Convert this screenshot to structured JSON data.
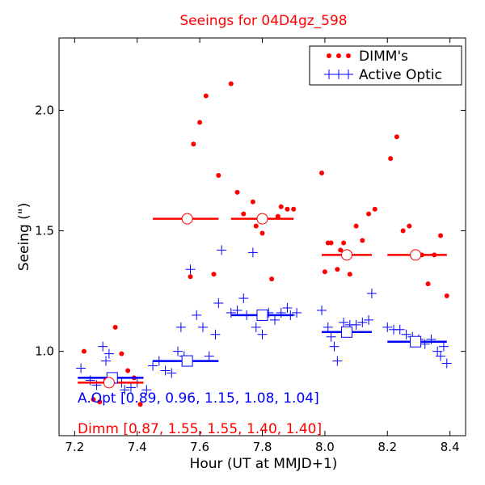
{
  "chart_data": {
    "type": "scatter",
    "title": "Seeings for 04D4gz_598",
    "xlabel": "Hour (UT at MMJD+1)",
    "ylabel": "Seeing (\")",
    "xlim": [
      7.15,
      8.45
    ],
    "ylim": [
      0.65,
      2.3
    ],
    "x_ticks": [
      7.2,
      7.4,
      7.6,
      7.8,
      8.0,
      8.2,
      8.4
    ],
    "x_tick_labels": [
      "7.2",
      "7.4",
      "7.6",
      "7.8",
      "8.0",
      "8.2",
      "8.4"
    ],
    "y_ticks": [
      1.0,
      1.5,
      2.0
    ],
    "y_tick_labels": [
      "1.0",
      "1.5",
      "2.0"
    ],
    "grid": false,
    "legend_position": "top-right",
    "series": [
      {
        "name": "DIMM's",
        "color": "#ff0000",
        "marker": "dot",
        "x": [
          7.23,
          7.26,
          7.28,
          7.3,
          7.32,
          7.33,
          7.35,
          7.37,
          7.39,
          7.41,
          7.57,
          7.58,
          7.6,
          7.62,
          7.645,
          7.66,
          7.7,
          7.72,
          7.74,
          7.77,
          7.78,
          7.8,
          7.83,
          7.85,
          7.86,
          7.88,
          7.9,
          7.99,
          8.0,
          8.01,
          8.02,
          8.04,
          8.05,
          8.06,
          8.07,
          8.08,
          8.1,
          8.12,
          8.14,
          8.16,
          8.21,
          8.23,
          8.25,
          8.27,
          8.29,
          8.31,
          8.33,
          8.35,
          8.37,
          8.39
        ],
        "y": [
          1.0,
          0.8,
          0.79,
          0.88,
          0.88,
          1.1,
          0.99,
          0.92,
          0.89,
          0.78,
          1.31,
          1.86,
          1.95,
          2.06,
          1.32,
          1.73,
          2.11,
          1.66,
          1.57,
          1.62,
          1.52,
          1.49,
          1.3,
          1.56,
          1.6,
          1.59,
          1.59,
          1.74,
          1.33,
          1.45,
          1.45,
          1.34,
          1.42,
          1.45,
          1.4,
          1.32,
          1.52,
          1.46,
          1.57,
          1.59,
          1.8,
          1.89,
          1.5,
          1.52,
          1.41,
          1.4,
          1.28,
          1.4,
          1.48,
          1.23
        ]
      },
      {
        "name": "Active Optic",
        "color": "#0000ff",
        "marker": "plus",
        "x": [
          7.22,
          7.25,
          7.27,
          7.29,
          7.3,
          7.31,
          7.33,
          7.35,
          7.36,
          7.38,
          7.4,
          7.43,
          7.45,
          7.47,
          7.49,
          7.51,
          7.53,
          7.54,
          7.55,
          7.57,
          7.59,
          7.61,
          7.63,
          7.65,
          7.66,
          7.67,
          7.7,
          7.72,
          7.74,
          7.75,
          7.77,
          7.78,
          7.8,
          7.82,
          7.84,
          7.86,
          7.88,
          7.89,
          7.91,
          7.99,
          8.01,
          8.02,
          8.03,
          8.04,
          8.06,
          8.08,
          8.1,
          8.12,
          8.14,
          8.15,
          8.2,
          8.22,
          8.24,
          8.26,
          8.28,
          8.3,
          8.32,
          8.34,
          8.36,
          8.37,
          8.38,
          8.39
        ],
        "y": [
          0.93,
          0.88,
          0.86,
          1.02,
          0.96,
          0.99,
          0.89,
          0.87,
          0.84,
          0.85,
          0.87,
          0.84,
          0.94,
          0.96,
          0.92,
          0.91,
          1.0,
          1.1,
          0.98,
          1.34,
          1.15,
          1.1,
          0.98,
          1.07,
          1.2,
          1.42,
          1.16,
          1.17,
          1.22,
          1.15,
          1.41,
          1.1,
          1.07,
          1.16,
          1.13,
          1.16,
          1.18,
          1.15,
          1.16,
          1.17,
          1.1,
          1.06,
          1.02,
          0.96,
          1.12,
          1.11,
          1.11,
          1.12,
          1.13,
          1.24,
          1.1,
          1.09,
          1.09,
          1.07,
          1.06,
          1.05,
          1.03,
          1.05,
          1.0,
          0.98,
          1.02,
          0.95
        ]
      }
    ],
    "bins": {
      "active_optic": {
        "color": "#0000ff",
        "segments": [
          {
            "x0": 7.21,
            "x1": 7.42,
            "xc": 7.32,
            "y": 0.89
          },
          {
            "x0": 7.45,
            "x1": 7.66,
            "xc": 7.56,
            "y": 0.96
          },
          {
            "x0": 7.7,
            "x1": 7.9,
            "xc": 7.8,
            "y": 1.15
          },
          {
            "x0": 7.99,
            "x1": 8.15,
            "xc": 8.07,
            "y": 1.08
          },
          {
            "x0": 8.2,
            "x1": 8.39,
            "xc": 8.29,
            "y": 1.04
          }
        ]
      },
      "dimm": {
        "color": "#ff0000",
        "segments": [
          {
            "x0": 7.21,
            "x1": 7.42,
            "xc": 7.31,
            "y": 0.87
          },
          {
            "x0": 7.45,
            "x1": 7.66,
            "xc": 7.56,
            "y": 1.55
          },
          {
            "x0": 7.7,
            "x1": 7.9,
            "xc": 7.8,
            "y": 1.55
          },
          {
            "x0": 7.99,
            "x1": 8.15,
            "xc": 8.07,
            "y": 1.4
          },
          {
            "x0": 8.2,
            "x1": 8.39,
            "xc": 8.29,
            "y": 1.4
          }
        ]
      }
    },
    "annotations": [
      {
        "text": "A.Opt [0.89, 0.96, 1.15, 1.08, 1.04]",
        "color": "#0000ff"
      },
      {
        "text": "Dimm [0.87, 1.55, 1.55, 1.40, 1.40]",
        "color": "#ff0000"
      }
    ]
  }
}
